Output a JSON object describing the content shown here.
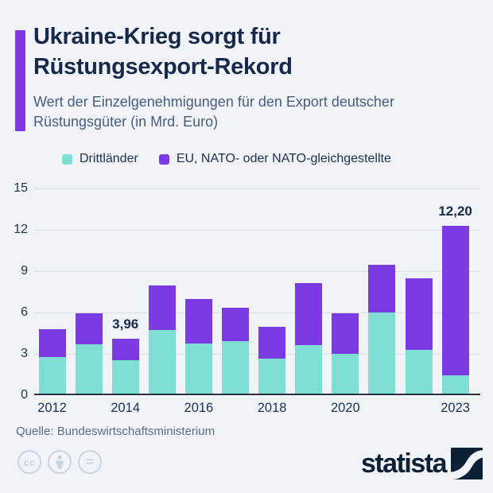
{
  "header": {
    "title_lines": [
      "Ukraine-Krieg sorgt für",
      "Rüstungsexport-Rekord"
    ],
    "subtitle_lines": [
      "Wert der Einzelgenehmigungen für den Export deutscher",
      "Rüstungsgüter (in Mrd. Euro)"
    ]
  },
  "legend": [
    {
      "label": "Drittländer",
      "color": "#7EDED3"
    },
    {
      "label": "EU, NATO- oder NATO-gleichgestellte",
      "color": "#7C3BE2"
    }
  ],
  "chart_data": {
    "type": "bar",
    "stacked": true,
    "title": "Ukraine-Krieg sorgt für Rüstungsexport-Rekord",
    "unit": "Mrd. Euro",
    "categories": [
      "2012",
      "2013",
      "2014",
      "2015",
      "2016",
      "2017",
      "2018",
      "2019",
      "2020",
      "2021",
      "2022",
      "2023"
    ],
    "series": [
      {
        "name": "Drittländer",
        "color": "#7EDED3",
        "values": [
          2.65,
          3.6,
          2.4,
          4.6,
          3.65,
          3.8,
          2.55,
          3.5,
          2.9,
          5.9,
          3.2,
          1.35
        ]
      },
      {
        "name": "EU, NATO- oder NATO-gleichgestellte",
        "color": "#7C3BE2",
        "values": [
          2.05,
          2.25,
          1.56,
          3.26,
          3.2,
          2.44,
          2.27,
          4.51,
          2.92,
          3.45,
          5.16,
          10.85
        ]
      }
    ],
    "totals": [
      4.7,
      5.85,
      3.96,
      7.86,
      6.85,
      6.24,
      4.82,
      8.01,
      5.82,
      9.35,
      8.36,
      12.2
    ],
    "annotations": [
      {
        "index": 2,
        "text": "3,96"
      },
      {
        "index": 11,
        "text": "12,20"
      }
    ],
    "y_ticks": [
      0,
      3,
      6,
      9,
      12,
      15
    ],
    "ylim": [
      0,
      15
    ],
    "x_ticks": [
      {
        "index": 0,
        "label": "2012"
      },
      {
        "index": 2,
        "label": "2014"
      },
      {
        "index": 4,
        "label": "2016"
      },
      {
        "index": 6,
        "label": "2018"
      },
      {
        "index": 8,
        "label": "2020"
      },
      {
        "index": 11,
        "label": "2023"
      }
    ],
    "grid": true,
    "legend_position": "top"
  },
  "footer": {
    "source": "Quelle: Bundeswirtschaftsministerium",
    "license_icons": [
      "cc",
      "by",
      "nd"
    ],
    "brand": "statista"
  },
  "colors": {
    "background": "#F0F4F9",
    "accent": "#8435E6",
    "teal": "#7EDED3",
    "purple": "#7C3BE2",
    "title_text": "#16294B",
    "subtitle_text": "#4A5C7E",
    "axis_text": "#1D3150",
    "gridline": "#D9DFE9",
    "axis_line": "#2B3240",
    "source_text": "#5B6C86",
    "license_icon": "#C9D4E2",
    "brand_navy": "#0D2136"
  }
}
